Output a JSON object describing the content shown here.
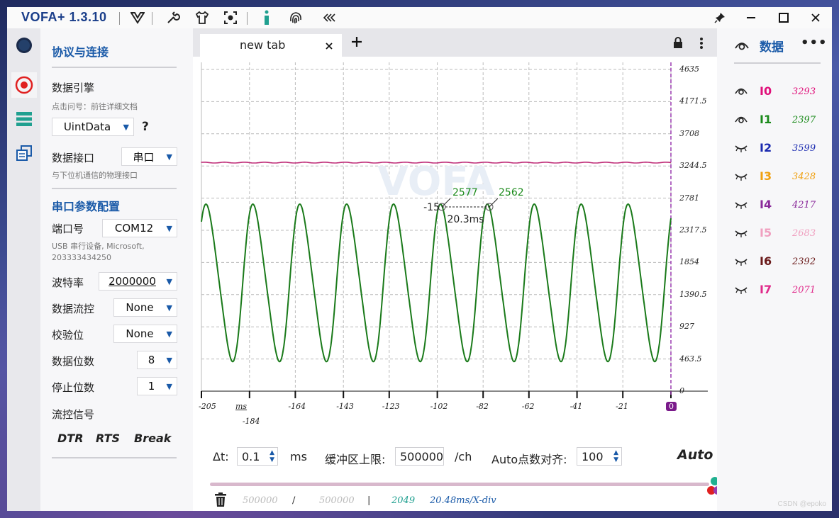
{
  "app": {
    "title": "VOFA+ 1.3.10"
  },
  "tabs": [
    {
      "label": "new tab"
    }
  ],
  "config": {
    "section_title": "协议与连接",
    "engine_label": "数据引擎",
    "engine_hint": "点击问号：前往详细文档",
    "engine_value": "UintData",
    "help": "?",
    "iface_label": "数据接口",
    "iface_value": "串口",
    "iface_hint": "与下位机通信的物理接口",
    "serial_title": "串口参数配置",
    "port_label": "端口号",
    "port_value": "COM12",
    "port_desc_1": "USB 串行设备, Microsoft,",
    "port_desc_2": "203333434250",
    "baud_label": "波特率",
    "baud_value": "2000000",
    "flowctl_label": "数据流控",
    "flowctl_value": "None",
    "parity_label": "校验位",
    "parity_value": "None",
    "databits_label": "数据位数",
    "databits_value": "8",
    "stopbits_label": "停止位数",
    "stopbits_value": "1",
    "flowsig_label": "流控信号",
    "flow_buttons": [
      "DTR",
      "RTS",
      "Break"
    ]
  },
  "chart_data": {
    "type": "line",
    "y_ticks": [
      "4635",
      "4171.5",
      "3708",
      "3244.5",
      "2781",
      "2317.5",
      "1854",
      "1390.5",
      "927",
      "463.5",
      "0"
    ],
    "x_ticks": [
      "-205",
      "-184",
      "-164",
      "-143",
      "-123",
      "-102",
      "-82",
      "-62",
      "-41",
      "-21",
      "0"
    ],
    "x_unit": "ms",
    "ylim": [
      0,
      4635
    ],
    "xlim": [
      -205,
      0
    ],
    "series": [
      {
        "name": "I1",
        "color": "#1a7a1a",
        "shape": "periodic",
        "period_ms": 20.48,
        "min": 400,
        "max": 2720,
        "last": 2397
      },
      {
        "name": "I0",
        "color": "#c0307a",
        "shape": "flat",
        "value": 3293
      }
    ],
    "cursors": {
      "left_value": "2577",
      "right_value": "2562",
      "offset_label": "-15",
      "delta_label": "20.3ms"
    },
    "grid": true
  },
  "controls": {
    "dt_label": "Δt:",
    "dt_value": "0.1",
    "dt_unit": "ms",
    "buffer_label": "缓冲区上限:",
    "buffer_value": "500000",
    "buffer_unit": "/ch",
    "align_label": "Auto点数对齐:",
    "align_value": "100",
    "auto_label": "Auto",
    "stats": {
      "count": "500000",
      "sep1": "/",
      "total": "500000",
      "sep2": "|",
      "points": "2049",
      "div": "20.48ms/X-div"
    }
  },
  "data_panel": {
    "title": "数据",
    "channels": [
      {
        "name": "I0",
        "value": "3293",
        "color": "#e0107a",
        "visible": true
      },
      {
        "name": "I1",
        "value": "2397",
        "color": "#1a8a1a",
        "visible": true
      },
      {
        "name": "I2",
        "value": "3599",
        "color": "#1a2ab0",
        "visible": false
      },
      {
        "name": "I3",
        "value": "3428",
        "color": "#f0a010",
        "visible": false
      },
      {
        "name": "I4",
        "value": "4217",
        "color": "#8a2a9a",
        "visible": false
      },
      {
        "name": "I5",
        "value": "2683",
        "color": "#f0a0c0",
        "visible": false
      },
      {
        "name": "I6",
        "value": "2392",
        "color": "#6a1a1a",
        "visible": false
      },
      {
        "name": "I7",
        "value": "2071",
        "color": "#e02a8a",
        "visible": false
      }
    ]
  },
  "watermark": "CSDN @epoko"
}
